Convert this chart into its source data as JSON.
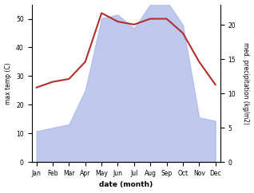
{
  "months": [
    "Jan",
    "Feb",
    "Mar",
    "Apr",
    "May",
    "Jun",
    "Jul",
    "Aug",
    "Sep",
    "Oct",
    "Nov",
    "Dec"
  ],
  "max_temp": [
    26,
    28,
    29,
    35,
    52,
    49,
    48,
    50,
    50,
    45,
    35,
    27
  ],
  "precipitation_right": [
    4.5,
    5.0,
    5.5,
    10.5,
    21.0,
    21.5,
    19.5,
    23.0,
    23.5,
    20.0,
    6.5,
    6.0
  ],
  "temp_color": "#b03030",
  "precip_color_fill": "#aab8e8",
  "left_ylim": [
    0,
    55
  ],
  "right_ylim": [
    0,
    23
  ],
  "left_yticks": [
    0,
    10,
    20,
    30,
    40,
    50
  ],
  "right_yticks": [
    0,
    5,
    10,
    15,
    20
  ],
  "ylabel_left": "max temp (C)",
  "ylabel_right": "med. precipitation (kg/m2)",
  "xlabel": "date (month)",
  "figsize": [
    3.18,
    2.42
  ],
  "dpi": 100
}
